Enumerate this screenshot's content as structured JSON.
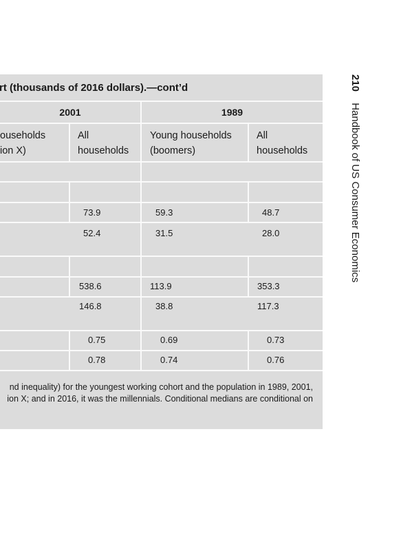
{
  "table": {
    "title_fragment": "rt (thousands of 2016 dollars).—cont’d",
    "years": [
      "2001",
      "1989"
    ],
    "col_headers": {
      "young_2001": [
        "ouseholds",
        "ion X)"
      ],
      "all_2001": [
        "All",
        "households"
      ],
      "young_1989": [
        "Young households",
        "(boomers)"
      ],
      "all_1989": [
        "All",
        "households"
      ]
    },
    "rows": [
      [
        "73.9",
        "59.3",
        "48.7"
      ],
      [
        "52.4",
        "31.5",
        "28.0"
      ],
      [
        "538.6",
        "113.9",
        "353.3"
      ],
      [
        "146.8",
        "38.8",
        "117.3"
      ],
      [
        "0.75",
        "0.69",
        "0.73"
      ],
      [
        "0.78",
        "0.74",
        "0.76"
      ]
    ],
    "footnote_lines": [
      "nd inequality) for the youngest working cohort and the population in 1989, 2001,",
      "ion X; and in 2016, it was the millennials. Conditional medians are conditional on"
    ]
  },
  "running_head": {
    "page_number": "210",
    "book_title": "Handbook of US Consumer Economics"
  }
}
